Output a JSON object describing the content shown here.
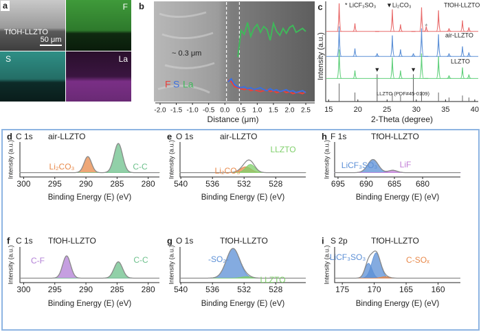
{
  "panel_a": {
    "panel": "a",
    "sample": "TfOH-LLZTO",
    "scale_bar": "50 μm",
    "maps": [
      "F",
      "S",
      "La"
    ]
  },
  "chart_data": [
    {
      "type": "line",
      "panel": "b",
      "xlabel": "Distance (μm)",
      "annotation": "~ 0.3 μm",
      "xlim": [
        -2,
        2.5
      ],
      "xticks": [
        {
          "value": -2,
          "label": "-2.0"
        },
        -1.5,
        {
          "value": -1,
          "label": "-1.0"
        },
        -0.5,
        {
          "value": 0,
          "label": "0.0"
        },
        0.5,
        {
          "value": 1,
          "label": "1.0"
        },
        1.5,
        {
          "value": 2,
          "label": "2.0"
        },
        2.5
      ],
      "ylim": [
        0,
        100
      ],
      "dashed": [
        0.05,
        0.45
      ],
      "x": [
        0.1,
        0.2,
        0.3,
        0.4,
        0.5,
        0.6,
        0.7,
        0.8,
        0.9,
        1.0,
        1.1,
        1.2,
        1.3,
        1.4,
        1.5,
        1.6,
        1.7,
        1.8,
        1.9,
        2.0,
        2.1,
        2.2,
        2.3,
        2.4,
        2.5
      ],
      "series": [
        {
          "name": "F",
          "color": "#e8413c",
          "values": [
            22,
            20,
            15,
            14,
            13,
            12,
            13,
            11,
            12,
            11,
            10,
            11,
            12,
            10,
            11,
            9,
            10,
            11,
            9,
            10,
            8,
            9,
            9,
            8,
            10
          ]
        },
        {
          "name": "S",
          "color": "#3b6fe0",
          "values": [
            20,
            23,
            17,
            15,
            14,
            15,
            13,
            14,
            12,
            13,
            14,
            12,
            11,
            13,
            11,
            12,
            10,
            11,
            12,
            10,
            11,
            9,
            10,
            11,
            9
          ]
        },
        {
          "name": "La",
          "color": "#3fb85a",
          "values": [
            null,
            null,
            null,
            45,
            72,
            68,
            80,
            66,
            74,
            78,
            70,
            76,
            73,
            62,
            79,
            71,
            67,
            74,
            69,
            75,
            77,
            70,
            72,
            74,
            71
          ]
        }
      ]
    },
    {
      "type": "xrd",
      "panel": "c",
      "xlabel": "2-Theta (degree)",
      "ylabel": "Intensity (a.u.)",
      "xlim": [
        14.5,
        40.6
      ],
      "xticks": [
        15,
        20,
        25,
        30,
        35,
        40
      ],
      "ylim": [
        0,
        100
      ],
      "legend": [
        "* LiCF₃SO₃",
        "▼Li₂CO₃"
      ],
      "x": [
        16.8,
        19.5,
        23.3,
        25.9,
        27.3,
        29.5,
        30.9,
        31.7,
        33.8,
        35.6,
        37.9,
        39.0
      ],
      "series": [
        {
          "name": "TfOH-LLZTO",
          "color": "#e86a6a",
          "values": [
            28,
            8,
            0,
            22,
            7,
            0,
            24,
            5,
            21,
            3,
            11,
            4
          ],
          "markers": [
            {
              "symbol": "*",
              "x": 31.7
            }
          ]
        },
        {
          "name": "air-LLZTO",
          "color": "#5b8fd6",
          "values": [
            30,
            8,
            3,
            21,
            7,
            3,
            28,
            0,
            22,
            3,
            10,
            4
          ],
          "markers": [
            {
              "symbol": "▼",
              "x": 23.3
            },
            {
              "symbol": "▼",
              "x": 29.5
            }
          ]
        },
        {
          "name": "LLZTO",
          "color": "#5fcf7a",
          "values": [
            29,
            8,
            0,
            21,
            8,
            0,
            25,
            0,
            22,
            3,
            11,
            4
          ]
        }
      ],
      "reference": {
        "name": "LLZTO (PDF#45-0109)",
        "x": [
          16.8,
          19.5,
          25.9,
          27.3,
          30.9,
          33.8,
          35.6,
          37.9,
          39.0
        ],
        "values": [
          18,
          9,
          8,
          6,
          10,
          9,
          4,
          6,
          4
        ]
      }
    },
    {
      "type": "xps",
      "panel": "d",
      "element": "C 1s",
      "sample": "air-LLZTO",
      "xlabel": "Binding Energy (E) (eV)",
      "ylabel": "Intensity (a.u.)",
      "xlim": [
        300.6,
        278.2
      ],
      "xticks": [
        300,
        295,
        290,
        285,
        280
      ],
      "ylim": [
        -0.15,
        1.05
      ],
      "peaks": [
        {
          "name": "Li₂CO₃",
          "color": "#e8894a",
          "center": 289.7,
          "height": 0.55,
          "fwhm": 1.4
        },
        {
          "name": "C-C",
          "color": "#6cc08b",
          "center": 284.8,
          "height": 1.0,
          "fwhm": 1.6
        }
      ]
    },
    {
      "type": "xps",
      "panel": "e",
      "element": "O 1s",
      "sample": "air-LLZTO",
      "xlabel": "Binding Energy (E) (eV)",
      "ylabel": "Intensity (a.u.)",
      "xlim": [
        540.1,
        524.2
      ],
      "xticks": [
        540,
        536,
        532,
        528
      ],
      "ylim": [
        -0.15,
        1.05
      ],
      "peaks": [
        {
          "name": "Li₂CO₃",
          "color": "#e8894a",
          "center": 531.8,
          "height": 0.2,
          "fwhm": 1.6
        },
        {
          "name": "LLZTO",
          "color": "#7fcf6a",
          "center": 531.2,
          "height": 0.28,
          "fwhm": 1.4
        }
      ]
    },
    {
      "type": "xps",
      "panel": "h",
      "element": "F 1s",
      "sample": "TfOH-LLZTO",
      "xlabel": "Binding Energy (E) (eV)",
      "ylabel": "Intensity (a.u.)",
      "xlim": [
        695.6,
        673.3
      ],
      "xticks": [
        695,
        690,
        685,
        680
      ],
      "ylim": [
        -0.15,
        1.05
      ],
      "peaks": [
        {
          "name": "LiCF₃SO₃",
          "color": "#5b8fd6",
          "center": 688.8,
          "height": 0.45,
          "fwhm": 2.2
        },
        {
          "name": "LiF",
          "color": "#c07bd6",
          "center": 685.3,
          "height": 0.08,
          "fwhm": 1.8
        }
      ]
    },
    {
      "type": "xps",
      "panel": "f",
      "element": "C 1s",
      "sample": "TfOH-LLZTO",
      "xlabel": "Binding Energy (E) (eV)",
      "ylabel": "Intensity (a.u.)",
      "xlim": [
        300.6,
        278.2
      ],
      "xticks": [
        300,
        295,
        290,
        285,
        280
      ],
      "ylim": [
        -0.15,
        1.05
      ],
      "peaks": [
        {
          "name": "C-F",
          "color": "#b27fd6",
          "center": 293.1,
          "height": 0.75,
          "fwhm": 1.5
        },
        {
          "name": "C-C",
          "color": "#6cc08b",
          "center": 284.8,
          "height": 0.55,
          "fwhm": 1.6
        }
      ]
    },
    {
      "type": "xps",
      "panel": "g",
      "element": "O 1s",
      "sample": "TfOH-LLZTO",
      "xlabel": "Binding Energy (E) (eV)",
      "ylabel": "Intensity (a.u.)",
      "xlim": [
        540.1,
        524.2
      ],
      "xticks": [
        540,
        536,
        532,
        528
      ],
      "ylim": [
        -0.15,
        1.05
      ],
      "peaks": [
        {
          "name": "-SO₂-",
          "color": "#5b8fd6",
          "center": 533.4,
          "height": 1.0,
          "fwhm": 2.0
        },
        {
          "name": "LLZTO",
          "color": "#7fcf6a",
          "center": 531.7,
          "height": 0.05,
          "fwhm": 1.5
        }
      ]
    },
    {
      "type": "xps",
      "panel": "i",
      "element": "S 2p",
      "sample": "TfOH-LLZTO",
      "xlabel": "Binding Energy (E) (eV)",
      "ylabel": "Intensity (a.u.)",
      "xlim": [
        176.2,
        156.5
      ],
      "xticks": [
        175,
        170,
        165,
        160
      ],
      "ylim": [
        -0.15,
        1.05
      ],
      "peaks": [
        {
          "name": "LiCF₃SO₃",
          "color": "#5b8fd6",
          "center": 170.9,
          "height": 0.5,
          "fwhm": 1.3
        },
        {
          "name": "LiCF₃SO₃",
          "color": "#5b8fd6",
          "center": 169.7,
          "height": 0.85,
          "fwhm": 1.6
        },
        {
          "name": "C-SOₓ",
          "color": "#e8894a",
          "center": 168.3,
          "height": 0.05,
          "fwhm": 1.5
        }
      ]
    }
  ]
}
